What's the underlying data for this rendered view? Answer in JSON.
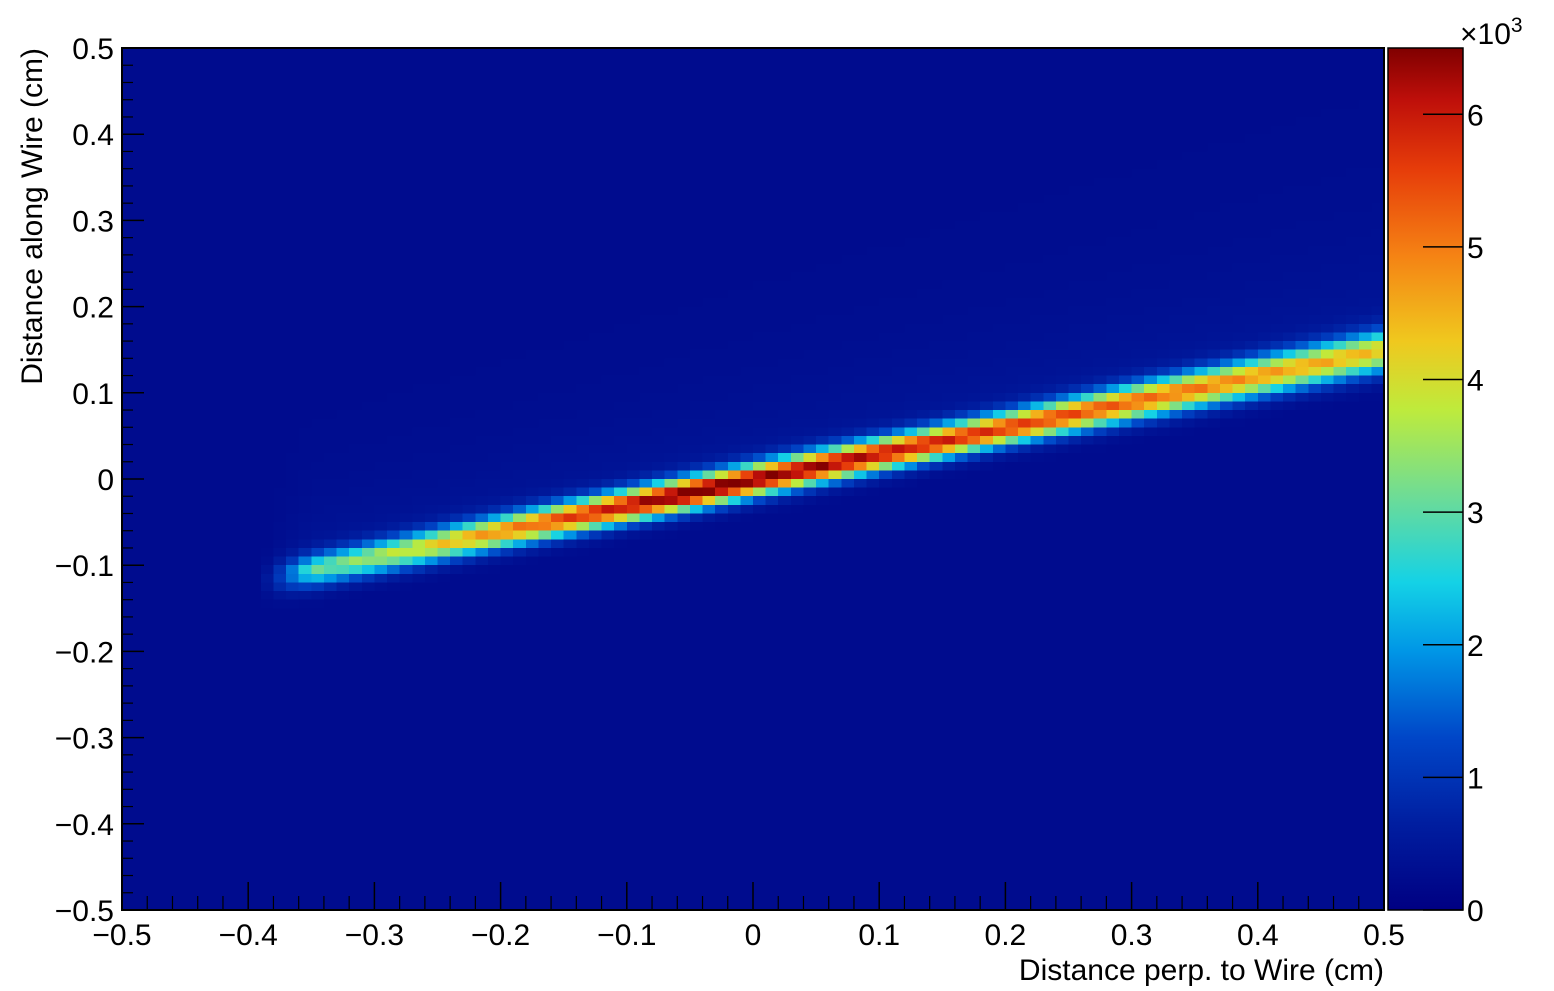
{
  "chart_data": {
    "type": "heatmap",
    "xlabel": "Distance perp. to Wire (cm)",
    "ylabel": "Distance along Wire (cm)",
    "xlim": [
      -0.5,
      0.5
    ],
    "ylim": [
      -0.5,
      0.5
    ],
    "x_ticks": [
      "−0.5",
      "−0.4",
      "−0.3",
      "−0.2",
      "−0.1",
      "0",
      "0.1",
      "0.2",
      "0.3",
      "0.4",
      "0.5"
    ],
    "x_tick_values": [
      -0.5,
      -0.4,
      -0.3,
      -0.2,
      -0.1,
      0,
      0.1,
      0.2,
      0.3,
      0.4,
      0.5
    ],
    "y_ticks": [
      "−0.5",
      "−0.4",
      "−0.3",
      "−0.2",
      "−0.1",
      "0",
      "0.1",
      "0.2",
      "0.3",
      "0.4",
      "0.5"
    ],
    "y_tick_values": [
      -0.5,
      -0.4,
      -0.3,
      -0.2,
      -0.1,
      0,
      0.1,
      0.2,
      0.3,
      0.4,
      0.5
    ],
    "z_multiplier": "×10",
    "z_exponent": "3",
    "z_range": [
      0,
      6.5
    ],
    "z_ticks": [
      "0",
      "1",
      "2",
      "3",
      "4",
      "5",
      "6"
    ],
    "z_tick_values": [
      0,
      1,
      2,
      3,
      4,
      5,
      6
    ],
    "bins": [
      100,
      100
    ],
    "colormap": "ROOT rainbow (dark blue to dark red)",
    "band": {
      "description_values": "ridge of counts along y = 0.3*x - 0.002",
      "slope": 0.3,
      "intercept": -0.002,
      "x_start": -0.39,
      "x_end": 0.5,
      "peak_x": -0.05,
      "peak_value": 6.4,
      "edge_value_left": 2.0,
      "edge_value_right": 3.9,
      "core_halfwidth": 0.013,
      "halo_above_width": 0.09,
      "halo_above_amplitude": 0.3
    },
    "background_value": 0.25,
    "grid": false,
    "legend": "none"
  }
}
